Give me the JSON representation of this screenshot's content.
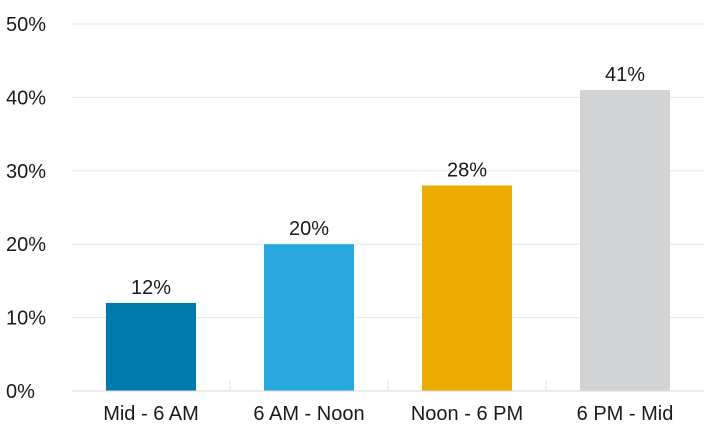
{
  "chart_data": {
    "type": "bar",
    "title": "",
    "xlabel": "",
    "ylabel": "",
    "categories": [
      "Mid - 6 AM",
      "6 AM - Noon",
      "Noon - 6 PM",
      "6 PM - Mid"
    ],
    "values": [
      12,
      20,
      28,
      41
    ],
    "value_labels": [
      "12%",
      "20%",
      "28%",
      "41%"
    ],
    "colors": [
      "#0079ab",
      "#29a8e0",
      "#ebab00",
      "#d1d3d4"
    ],
    "ylim": [
      0,
      50
    ],
    "yticks": [
      0,
      10,
      20,
      30,
      40,
      50
    ],
    "ytick_labels": [
      "0%",
      "10%",
      "20%",
      "30%",
      "40%",
      "50%"
    ],
    "grid": true,
    "legend": "none"
  }
}
